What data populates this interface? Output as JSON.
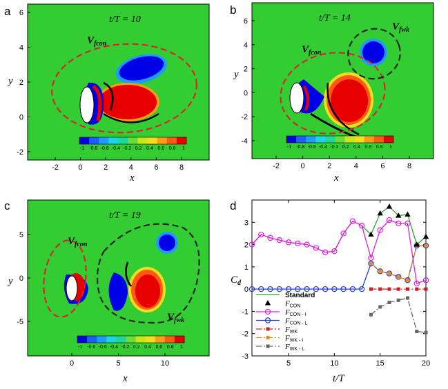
{
  "panels": [
    {
      "label": "a",
      "time_label": "t/T = 10",
      "xlabel": "x",
      "ylabel": "y",
      "xticks": [
        "-2",
        "0",
        "2",
        "4",
        "6",
        "8"
      ],
      "yticks": [
        "6",
        "4",
        "2",
        "0",
        "-2"
      ],
      "regions": [
        {
          "main": "V",
          "sub": "fcon"
        }
      ],
      "colorbar_ticks": [
        "-1",
        "-0.8",
        "-0.6",
        "-0.4",
        "-0.2",
        "0.2",
        "0.4",
        "0.6",
        "0.8",
        "1"
      ]
    },
    {
      "label": "b",
      "time_label": "t/T = 14",
      "xlabel": "x",
      "ylabel": "y",
      "xticks": [
        "-2",
        "0",
        "2",
        "4",
        "6",
        "8"
      ],
      "yticks": [
        "6",
        "4",
        "2",
        "0",
        "-2",
        "-4"
      ],
      "regions": [
        {
          "main": "V",
          "sub": "fcon"
        },
        {
          "main": "V",
          "sub": "fwk"
        }
      ],
      "colorbar_ticks": [
        "-1",
        "-0.8",
        "-0.6",
        "-0.4",
        "-0.2",
        "0.2",
        "0.4",
        "0.6",
        "0.8",
        "1"
      ]
    },
    {
      "label": "c",
      "time_label": "t/T = 19",
      "xlabel": "x",
      "ylabel": "y",
      "xticks": [
        "0",
        "5",
        "10"
      ],
      "yticks": [
        "5",
        "0",
        "-5"
      ],
      "regions": [
        {
          "main": "V",
          "sub": "fcon"
        },
        {
          "main": "V",
          "sub": "fwk"
        }
      ],
      "colorbar_ticks": [
        "-1",
        "-0.8",
        "-0.6",
        "-0.4",
        "-0.2",
        "0.2",
        "0.4",
        "0.6",
        "0.8",
        "1"
      ]
    }
  ],
  "colors": {
    "field": "#33cc33",
    "con_region": "#d62728",
    "wk_region": "#222222",
    "colormap": [
      "#0000e6",
      "#1f5cff",
      "#1f9bff",
      "#1fd3e0",
      "#22d69a",
      "#6bdc3a",
      "#c8e61e",
      "#f5dc1e",
      "#ff9b1a",
      "#ff5a14",
      "#e60000"
    ]
  },
  "chart_data": {
    "label": "d",
    "type": "line",
    "xlabel": "t/T",
    "ylabel": "C",
    "ylabel_sub": "d",
    "xlim": [
      1,
      20
    ],
    "ylim": [
      -3,
      4
    ],
    "xticks": [
      "5",
      "10",
      "15",
      "20"
    ],
    "yticks": [
      "3",
      "2",
      "1",
      "0",
      "-1",
      "-2",
      "-3"
    ],
    "series": [
      {
        "name": "Standard",
        "color": "#2ca02c",
        "style": "solid",
        "marker": "none",
        "x": [
          1,
          2,
          3,
          4,
          5,
          6,
          7,
          8,
          9,
          10,
          11,
          12,
          13,
          14,
          15,
          16,
          17,
          18,
          19,
          20
        ],
        "y": [
          2.0,
          2.45,
          2.3,
          2.2,
          2.1,
          2.05,
          2.0,
          1.85,
          1.65,
          1.7,
          2.5,
          3.05,
          2.85,
          2.45,
          3.4,
          3.7,
          3.3,
          3.35,
          2.0,
          2.35
        ]
      },
      {
        "name": "F_CON",
        "label_main": "F",
        "label_sub": "CON",
        "color": "#000000",
        "style": "none",
        "marker": "triangle",
        "x": [
          1,
          2,
          3,
          4,
          5,
          6,
          7,
          8,
          9,
          10,
          11,
          12,
          13,
          14,
          15,
          16,
          17,
          18,
          19,
          20
        ],
        "y": [
          2.0,
          2.45,
          2.3,
          2.2,
          2.1,
          2.05,
          2.0,
          1.85,
          1.65,
          1.7,
          2.5,
          3.05,
          2.85,
          2.45,
          3.4,
          3.7,
          3.3,
          3.35,
          2.0,
          2.35
        ]
      },
      {
        "name": "F_CON-I",
        "label_main": "F",
        "label_sub": "CON - I",
        "color": "#e01ee0",
        "style": "solid",
        "marker": "circle-open",
        "x": [
          1,
          2,
          3,
          4,
          5,
          6,
          7,
          8,
          9,
          10,
          11,
          12,
          13,
          14,
          15,
          16,
          17,
          18,
          19,
          20
        ],
        "y": [
          2.0,
          2.45,
          2.3,
          2.2,
          2.1,
          2.05,
          2.0,
          1.85,
          1.65,
          1.7,
          2.5,
          3.05,
          2.85,
          1.4,
          2.65,
          3.1,
          2.95,
          2.95,
          0.25,
          0.4
        ]
      },
      {
        "name": "F_CON-L",
        "label_main": "F",
        "label_sub": "CON - L",
        "color": "#1f3cd6",
        "style": "solid",
        "marker": "circle-open",
        "x": [
          1,
          2,
          3,
          4,
          5,
          6,
          7,
          8,
          9,
          10,
          11,
          12,
          13,
          14,
          15,
          16,
          17,
          18,
          19,
          20
        ],
        "y": [
          0,
          0,
          0,
          0,
          0,
          0,
          0,
          0,
          0,
          0,
          0,
          0,
          0,
          1.15,
          0.8,
          0.7,
          0.55,
          0.4,
          1.95,
          1.95
        ]
      },
      {
        "name": "F_WK",
        "label_main": "F",
        "label_sub": "WK",
        "color": "#cc1f1f",
        "style": "dashdot",
        "marker": "square",
        "x": [
          14,
          15,
          16,
          17,
          18,
          19,
          20
        ],
        "y": [
          0,
          0,
          0,
          0,
          0,
          0,
          0
        ]
      },
      {
        "name": "F_WK-I",
        "label_main": "F",
        "label_sub": "WK - I",
        "color": "#f08a1e",
        "style": "dashdot",
        "marker": "square",
        "x": [
          14,
          15,
          16,
          17,
          18,
          19,
          20
        ],
        "y": [
          1.15,
          0.8,
          0.7,
          0.55,
          0.4,
          1.95,
          1.95
        ]
      },
      {
        "name": "F_WK-L",
        "label_main": "F",
        "label_sub": "WK - L",
        "color": "#666666",
        "style": "dashdot",
        "marker": "square",
        "x": [
          14,
          15,
          16,
          17,
          18,
          19,
          20
        ],
        "y": [
          -1.15,
          -0.8,
          -0.6,
          -0.5,
          -0.4,
          -1.9,
          -1.95
        ]
      }
    ],
    "legend_position": "bottom-left"
  }
}
